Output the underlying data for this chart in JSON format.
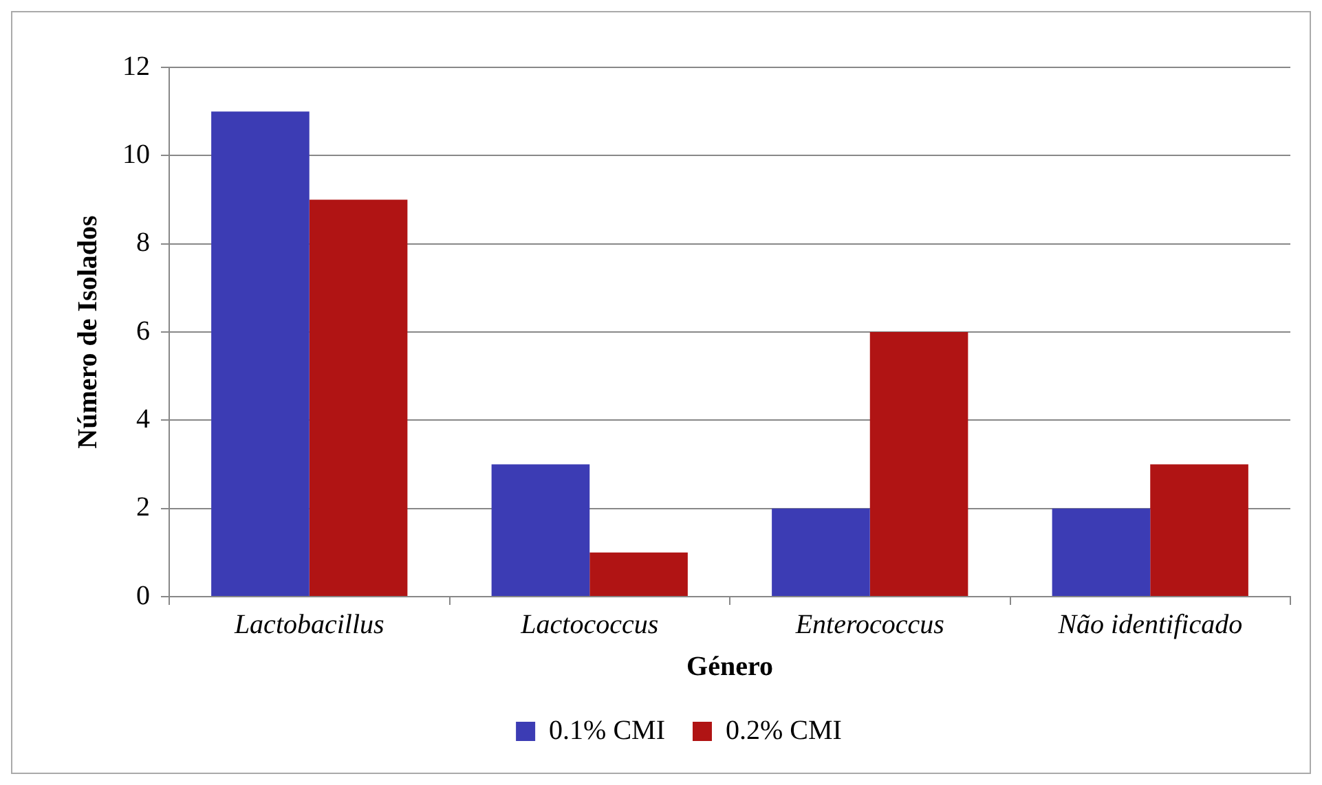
{
  "chart_data": {
    "type": "bar",
    "xlabel": "Género",
    "ylabel": "Número de Isolados",
    "categories": [
      "Lactobacillus",
      "Lactococcus",
      "Enterococcus",
      "Não identificado"
    ],
    "series": [
      {
        "name": "0.1% CMI",
        "color": "#3c3cb4",
        "values": [
          11,
          3,
          2,
          2
        ]
      },
      {
        "name": "0.2% CMI",
        "color": "#b01414",
        "values": [
          9,
          1,
          6,
          3
        ]
      }
    ],
    "ylim": [
      0,
      12
    ],
    "yticks": [
      0,
      2,
      4,
      6,
      8,
      10,
      12
    ],
    "grid": "y",
    "legend": "bottom"
  }
}
